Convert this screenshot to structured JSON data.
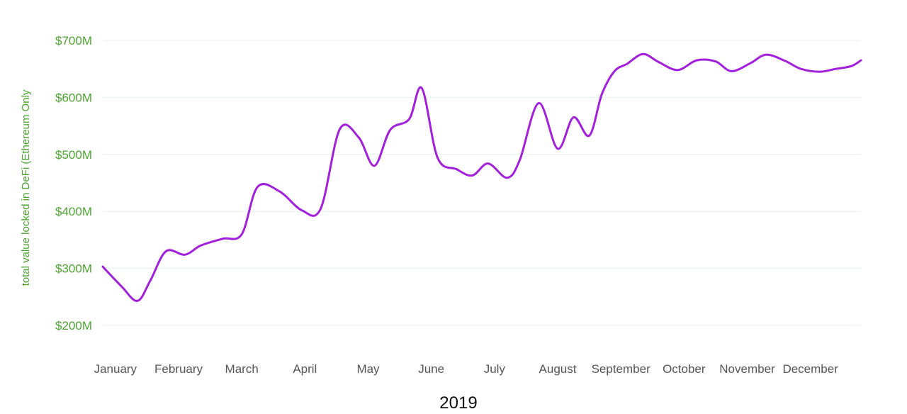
{
  "colors": {
    "line": "#a21fdb",
    "grid": "#e3f2ee",
    "axis_text": "#4ca32f",
    "month_text": "#555555",
    "xlabel_text": "#111111"
  },
  "chart_data": {
    "type": "line",
    "title": "",
    "xlabel": "2019",
    "ylabel": "total value locked in DeFi (Ethereum Only",
    "categories": [
      "January",
      "February",
      "March",
      "April",
      "May",
      "June",
      "July",
      "August",
      "September",
      "October",
      "November",
      "December"
    ],
    "x_range": [
      1,
      13
    ],
    "ylim": [
      200,
      700
    ],
    "yticks": [
      200,
      300,
      400,
      500,
      600,
      700
    ],
    "ytick_labels": [
      "$200M",
      "$300M",
      "$400M",
      "$500M",
      "$600M",
      "$700M"
    ],
    "grid": true,
    "series": [
      {
        "x": [
          1.0,
          1.3,
          1.55,
          1.75,
          2.0,
          2.3,
          2.55,
          2.9,
          3.2,
          3.45,
          3.8,
          4.15,
          4.45,
          4.75,
          5.05,
          5.3,
          5.55,
          5.85,
          6.05,
          6.3,
          6.6,
          6.85,
          7.1,
          7.4,
          7.6,
          7.9,
          8.2,
          8.45,
          8.7,
          8.9,
          9.1,
          9.3,
          9.55,
          9.8,
          10.1,
          10.4,
          10.7,
          10.95,
          11.25,
          11.5,
          11.8,
          12.05,
          12.35,
          12.6,
          12.85,
          13.0
        ],
        "y": [
          303,
          268,
          243,
          278,
          330,
          324,
          340,
          352,
          360,
          443,
          435,
          402,
          405,
          544,
          530,
          480,
          543,
          562,
          616,
          494,
          474,
          463,
          484,
          459,
          490,
          590,
          510,
          565,
          533,
          606,
          646,
          659,
          676,
          662,
          648,
          665,
          663,
          646,
          660,
          675,
          664,
          650,
          645,
          650,
          655,
          665
        ]
      }
    ]
  }
}
